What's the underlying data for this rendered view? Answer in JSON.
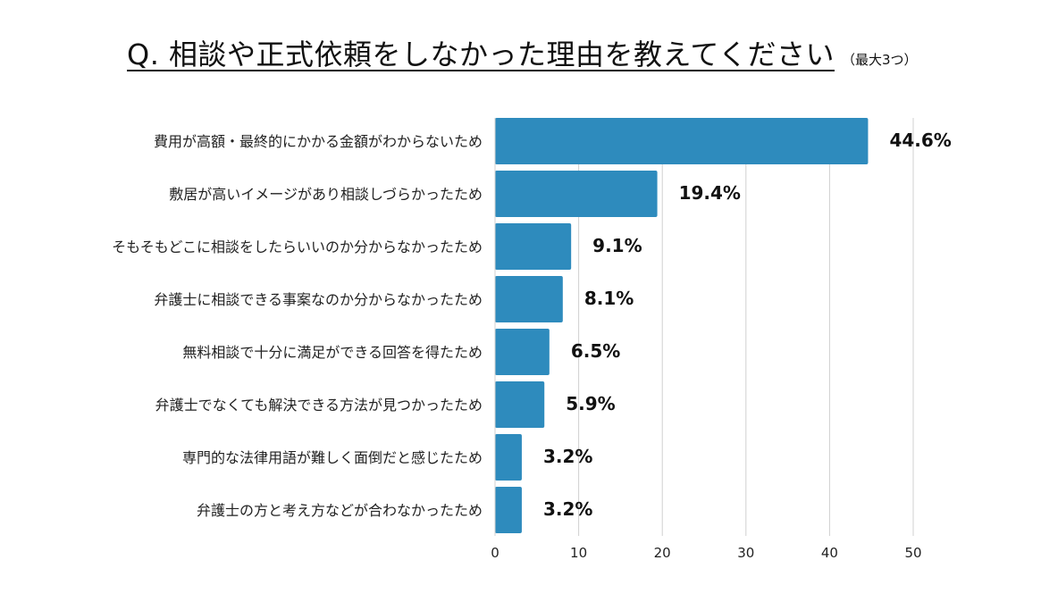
{
  "title": "Q. 相談や正式依頼をしなかった理由を教えてください",
  "subtitle": "（最大3つ）",
  "chart_data": {
    "type": "bar",
    "orientation": "horizontal",
    "categories": [
      "費用が高額・最終的にかかる金額がわからないため",
      "敷居が高いイメージがあり相談しづらかったため",
      "そもそもどこに相談をしたらいいのか分からなかったため",
      "弁護士に相談できる事案なのか分からなかったため",
      "無料相談で十分に満足ができる回答を得たため",
      "弁護士でなくても解決できる方法が見つかったため",
      "専門的な法律用語が難しく面倒だと感じたため",
      "弁護士の方と考え方などが合わなかったため"
    ],
    "values": [
      44.6,
      19.4,
      9.1,
      8.1,
      6.5,
      5.9,
      3.2,
      3.2
    ],
    "value_labels": [
      "44.6%",
      "19.4%",
      "9.1%",
      "8.1%",
      "6.5%",
      "5.9%",
      "3.2%",
      "3.2%"
    ],
    "xlim": [
      0,
      50
    ],
    "xticks": [
      0,
      10,
      20,
      30,
      40,
      50
    ],
    "grid": true,
    "bar_color": "#2e8bbd",
    "grid_color": "#d0d0d0"
  }
}
